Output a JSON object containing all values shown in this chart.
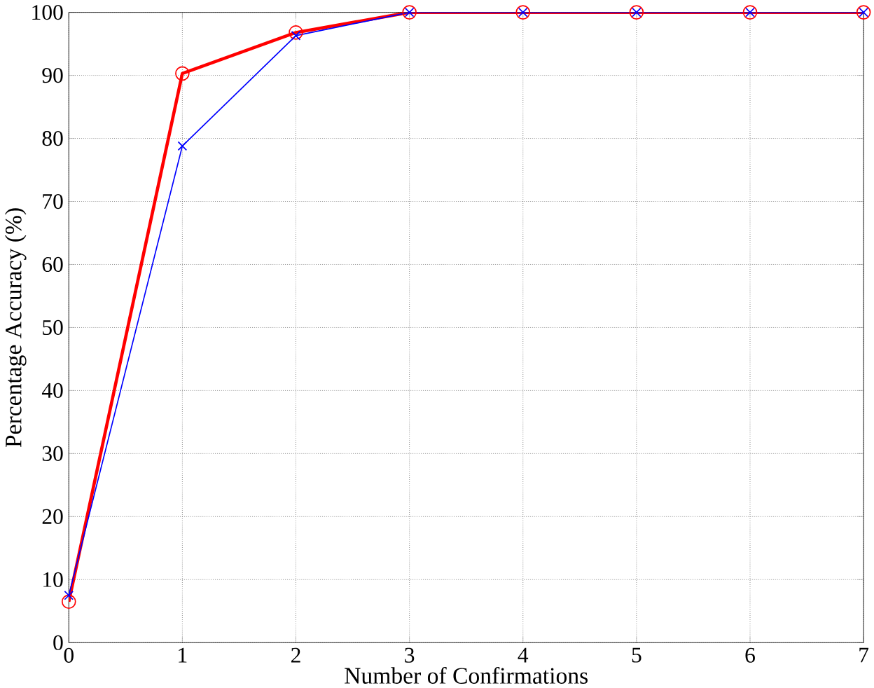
{
  "chart_data": {
    "type": "line",
    "xlabel": "Number of Confirmations",
    "ylabel": "Percentage Accuracy (%)",
    "x": [
      0,
      1,
      2,
      3,
      4,
      5,
      6,
      7
    ],
    "series": [
      {
        "color": "#ff0000",
        "marker": "circle",
        "values": [
          6.5,
          90.3,
          96.8,
          100,
          100,
          100,
          100,
          100
        ]
      },
      {
        "color": "#0000ff",
        "marker": "cross",
        "values": [
          7.5,
          78.8,
          96.3,
          100,
          100,
          100,
          100,
          100
        ]
      }
    ],
    "xlim": [
      0,
      7
    ],
    "xticks": [
      0,
      1,
      2,
      3,
      4,
      5,
      6,
      7
    ],
    "ylim": [
      0,
      100
    ],
    "yticks": [
      0,
      10,
      20,
      30,
      40,
      50,
      60,
      70,
      80,
      90,
      100
    ],
    "grid": true,
    "line_style": "solid"
  }
}
